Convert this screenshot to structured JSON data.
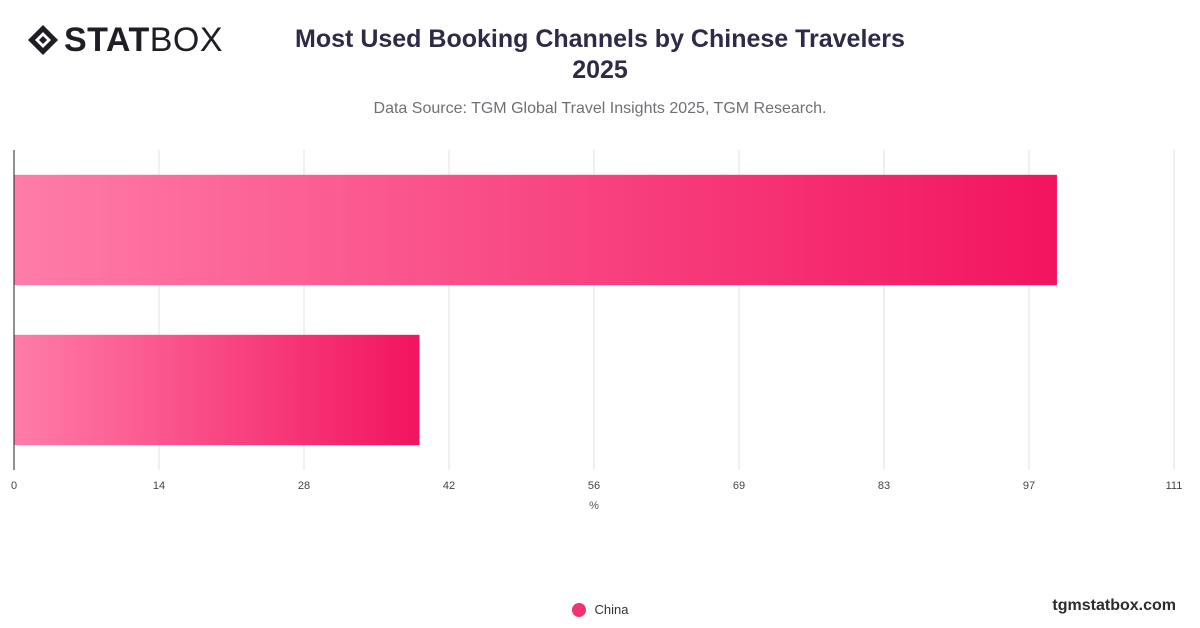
{
  "header": {
    "logo_text_bold": "STAT",
    "logo_text_light": "BOX",
    "title_line1": "Most Used Booking Channels by Chinese Travelers",
    "title_line2": "2025",
    "subtitle": "Data Source: TGM Global Travel Insights 2025, TGM Research."
  },
  "footer": {
    "url": "tgmstatbox.com"
  },
  "colors": {
    "bar_start": "#ff7ca8",
    "bar_end": "#f2145f",
    "legend": "#f0346f",
    "grid": "#e2e2e2",
    "axis": "#222222"
  },
  "chart_data": {
    "type": "bar",
    "orientation": "horizontal",
    "title": "Most Used Booking Channels by Chinese Travelers 2025",
    "xlabel": "%",
    "ylabel": "",
    "xlim": [
      0,
      111
    ],
    "x_ticks": [
      "0",
      "14",
      "28",
      "42",
      "56",
      "69",
      "83",
      "97",
      "111"
    ],
    "categories": [
      "",
      ""
    ],
    "series": [
      {
        "name": "China",
        "values": [
          99.8,
          38.8
        ]
      }
    ],
    "grid": true,
    "legend_position": "bottom-center"
  }
}
